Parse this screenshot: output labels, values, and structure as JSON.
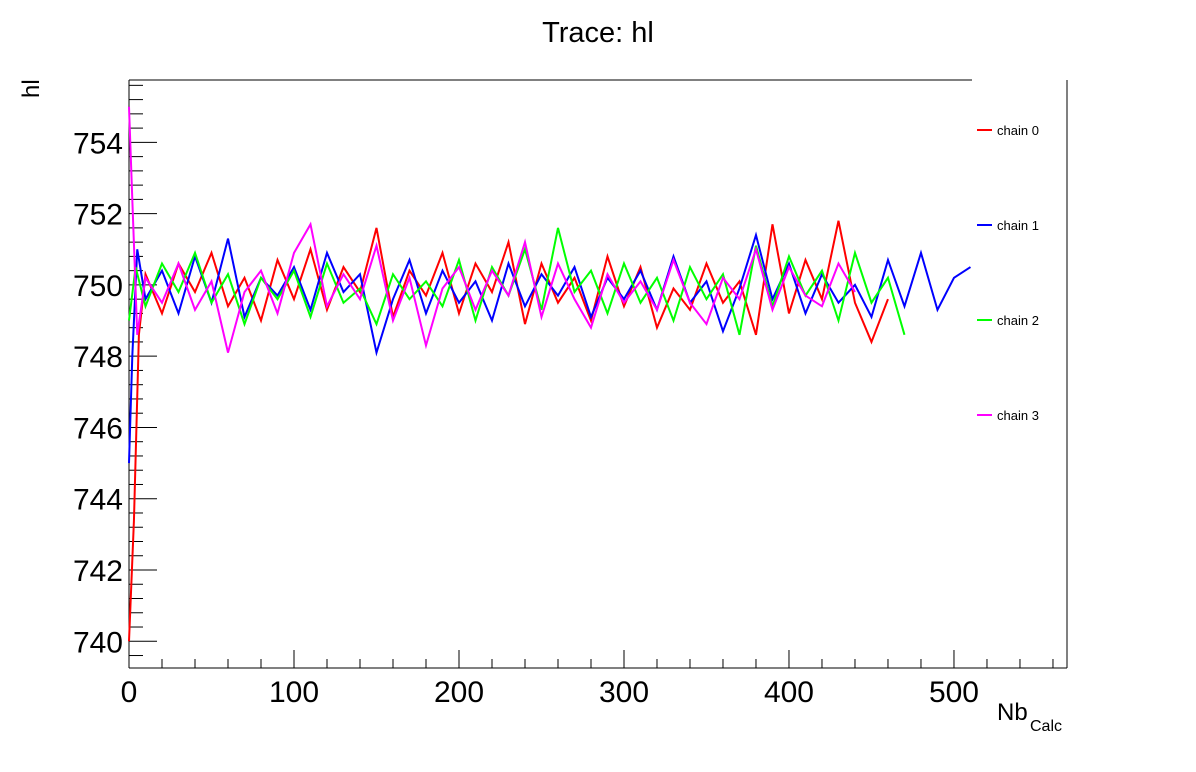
{
  "chart_data": {
    "type": "line",
    "title": "Trace: hl",
    "y_label": "hl",
    "x_label": "Nb",
    "x_label_sub": "Calc",
    "xlim": [
      0,
      568.5
    ],
    "ylim": [
      739.25,
      755.75
    ],
    "xticks": [
      0,
      100,
      200,
      300,
      400,
      500
    ],
    "yticks": [
      740,
      742,
      744,
      746,
      748,
      750,
      752,
      754
    ],
    "xminorticks": [
      20,
      40,
      60,
      80,
      120,
      140,
      160,
      180,
      220,
      240,
      260,
      280,
      320,
      340,
      360,
      380,
      420,
      440,
      460,
      480,
      520,
      540,
      560
    ],
    "yminorticks": [
      739.6,
      740.4,
      740.8,
      741.2,
      741.6,
      742.4,
      742.8,
      743.2,
      743.6,
      744.4,
      744.8,
      745.2,
      745.6,
      746.4,
      746.8,
      747.2,
      747.6,
      748.4,
      748.8,
      749.2,
      749.6,
      750.4,
      750.8,
      751.2,
      751.6,
      752.4,
      752.8,
      753.2,
      753.6,
      754.4,
      754.8,
      755.2,
      755.6
    ],
    "legend": "right",
    "series": [
      {
        "name": "chain 0",
        "color": "#ff0000",
        "x": [
          0,
          3,
          6,
          10,
          20,
          30,
          40,
          50,
          60,
          70,
          80,
          90,
          100,
          110,
          120,
          130,
          140,
          150,
          160,
          170,
          180,
          190,
          200,
          210,
          220,
          230,
          240,
          250,
          260,
          270,
          280,
          290,
          300,
          310,
          320,
          330,
          340,
          350,
          360,
          370,
          380,
          390,
          400,
          410,
          420,
          430,
          440,
          450,
          460
        ],
        "values": [
          740,
          743.4,
          748.6,
          750.3,
          749.2,
          750.6,
          749.8,
          750.9,
          749.4,
          750.2,
          749.0,
          750.7,
          749.6,
          751.0,
          749.3,
          750.5,
          749.8,
          751.6,
          749.1,
          750.4,
          749.7,
          750.9,
          749.2,
          750.6,
          749.8,
          751.2,
          748.9,
          750.6,
          749.5,
          750.2,
          749.0,
          750.8,
          749.4,
          750.5,
          748.8,
          749.9,
          749.3,
          750.6,
          749.5,
          750.1,
          748.6,
          751.7,
          749.2,
          750.7,
          749.6,
          751.8,
          749.5,
          748.4,
          749.6
        ]
      },
      {
        "name": "chain 1",
        "color": "#0000ff",
        "x": [
          0,
          2,
          5,
          10,
          20,
          30,
          40,
          50,
          60,
          70,
          80,
          90,
          100,
          110,
          120,
          130,
          140,
          150,
          160,
          170,
          180,
          190,
          200,
          210,
          220,
          230,
          240,
          250,
          260,
          270,
          280,
          290,
          300,
          310,
          320,
          330,
          340,
          350,
          360,
          370,
          380,
          390,
          400,
          410,
          420,
          430,
          440,
          450,
          460,
          470,
          480,
          490,
          500,
          510
        ],
        "values": [
          745,
          748,
          751,
          749.6,
          750.4,
          749.2,
          750.8,
          749.5,
          751.3,
          749.1,
          750.2,
          749.7,
          750.5,
          749.3,
          750.9,
          749.8,
          750.3,
          748.1,
          749.6,
          750.7,
          749.2,
          750.4,
          749.5,
          750.1,
          749.0,
          750.6,
          749.4,
          750.3,
          749.7,
          750.5,
          749.1,
          750.2,
          749.6,
          750.4,
          749.3,
          750.8,
          749.5,
          750.1,
          748.7,
          749.9,
          751.4,
          749.6,
          750.6,
          749.2,
          750.3,
          749.5,
          750.0,
          749.1,
          750.7,
          749.4,
          750.9,
          749.3,
          750.2,
          750.5
        ]
      },
      {
        "name": "chain 2",
        "color": "#00ff00",
        "x": [
          0,
          4,
          10,
          20,
          30,
          40,
          50,
          60,
          70,
          80,
          90,
          100,
          110,
          120,
          130,
          140,
          150,
          160,
          170,
          180,
          190,
          200,
          210,
          220,
          230,
          240,
          250,
          260,
          270,
          280,
          290,
          300,
          310,
          320,
          330,
          340,
          350,
          360,
          370,
          380,
          390,
          400,
          410,
          420,
          430,
          440,
          450,
          460,
          470
        ],
        "values": [
          749,
          750.5,
          749.4,
          750.6,
          749.8,
          750.9,
          749.5,
          750.3,
          748.9,
          750.2,
          749.6,
          750.4,
          749.1,
          750.6,
          749.5,
          749.9,
          748.9,
          750.3,
          749.6,
          750.1,
          749.4,
          750.7,
          749.0,
          750.5,
          749.7,
          751.0,
          749.3,
          751.6,
          749.8,
          750.4,
          749.2,
          750.6,
          749.5,
          750.2,
          749.0,
          750.5,
          749.6,
          750.3,
          748.6,
          751.1,
          749.4,
          750.8,
          749.7,
          750.4,
          749.0,
          750.9,
          749.5,
          750.2,
          748.6
        ]
      },
      {
        "name": "chain 3",
        "color": "#ff00ff",
        "x": [
          0,
          2,
          5,
          10,
          20,
          30,
          40,
          50,
          60,
          70,
          80,
          90,
          100,
          110,
          120,
          130,
          140,
          150,
          160,
          170,
          180,
          190,
          200,
          210,
          220,
          230,
          240,
          250,
          260,
          270,
          280,
          290,
          300,
          310,
          320,
          330,
          340,
          350,
          360,
          370,
          380,
          390,
          400,
          410,
          420,
          430,
          440
        ],
        "values": [
          755,
          752.4,
          748.6,
          750.2,
          749.5,
          750.6,
          749.3,
          750.1,
          748.1,
          749.8,
          750.4,
          749.2,
          750.9,
          751.7,
          749.4,
          750.3,
          749.6,
          751.1,
          749.0,
          750.2,
          748.3,
          749.9,
          750.5,
          749.3,
          750.4,
          749.7,
          751.2,
          749.1,
          750.6,
          749.6,
          748.8,
          750.3,
          749.5,
          750.1,
          749.3,
          750.7,
          749.5,
          748.9,
          750.2,
          749.6,
          751.0,
          749.3,
          750.5,
          749.7,
          749.4,
          750.6,
          749.8
        ]
      }
    ]
  }
}
